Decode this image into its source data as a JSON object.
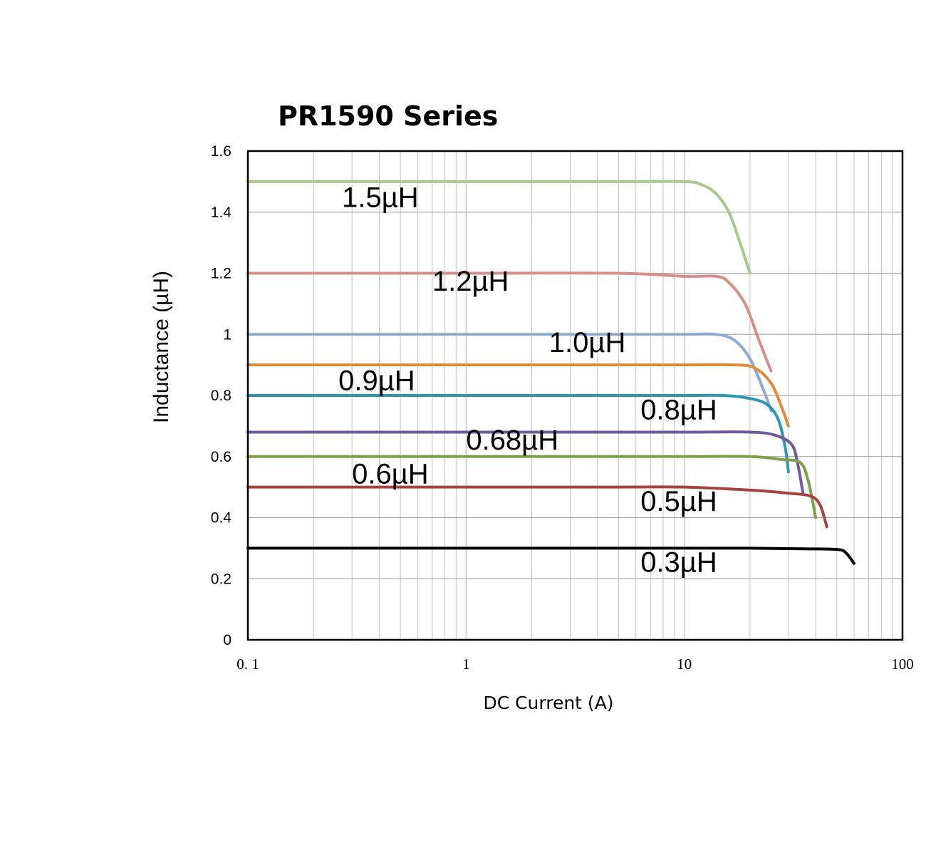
{
  "chart_data": {
    "type": "line",
    "title": "PR1590 Series",
    "xlabel": "DC Current (A)",
    "ylabel": "Inductance (µH)",
    "xscale": "log",
    "xlim": [
      0.1,
      100
    ],
    "ylim": [
      0,
      1.6
    ],
    "xticks": [
      "0.1",
      "1",
      "10",
      "100"
    ],
    "yticks": [
      "0",
      "0.2",
      "0.4",
      "0.6",
      "0.8",
      "1",
      "1.2",
      "1.4",
      "1.6"
    ],
    "grid": true,
    "series": [
      {
        "name": "1.5µH",
        "color": "#a9c88a",
        "points": [
          [
            0.1,
            1.5
          ],
          [
            1,
            1.5
          ],
          [
            5,
            1.5
          ],
          [
            10,
            1.5
          ],
          [
            12,
            1.49
          ],
          [
            14,
            1.46
          ],
          [
            16,
            1.4
          ],
          [
            18,
            1.3
          ],
          [
            20,
            1.2
          ]
        ]
      },
      {
        "name": "1.2µH",
        "color": "#d48f8d",
        "points": [
          [
            0.1,
            1.2
          ],
          [
            1,
            1.2
          ],
          [
            5,
            1.2
          ],
          [
            10,
            1.19
          ],
          [
            14,
            1.19
          ],
          [
            16,
            1.17
          ],
          [
            19,
            1.1
          ],
          [
            22,
            0.98
          ],
          [
            25,
            0.88
          ]
        ]
      },
      {
        "name": "1.0µH",
        "color": "#8fa9d6",
        "points": [
          [
            0.1,
            1.0
          ],
          [
            1,
            1.0
          ],
          [
            5,
            1.0
          ],
          [
            10,
            1.0
          ],
          [
            14,
            1.0
          ],
          [
            17,
            0.98
          ],
          [
            20,
            0.92
          ],
          [
            23,
            0.82
          ],
          [
            25,
            0.75
          ]
        ]
      },
      {
        "name": "0.9µH",
        "color": "#e08a3a",
        "points": [
          [
            0.1,
            0.9
          ],
          [
            1,
            0.9
          ],
          [
            5,
            0.9
          ],
          [
            10,
            0.9
          ],
          [
            17,
            0.9
          ],
          [
            21,
            0.89
          ],
          [
            25,
            0.84
          ],
          [
            28,
            0.76
          ],
          [
            30,
            0.7
          ]
        ]
      },
      {
        "name": "0.8µH",
        "color": "#2e97b0",
        "points": [
          [
            0.1,
            0.8
          ],
          [
            1,
            0.8
          ],
          [
            5,
            0.8
          ],
          [
            10,
            0.8
          ],
          [
            15,
            0.8
          ],
          [
            20,
            0.79
          ],
          [
            24,
            0.77
          ],
          [
            27,
            0.72
          ],
          [
            29,
            0.63
          ],
          [
            30,
            0.55
          ]
        ]
      },
      {
        "name": "0.68µH",
        "color": "#6f5b99",
        "points": [
          [
            0.1,
            0.68
          ],
          [
            1,
            0.68
          ],
          [
            5,
            0.68
          ],
          [
            10,
            0.68
          ],
          [
            20,
            0.68
          ],
          [
            26,
            0.67
          ],
          [
            31,
            0.64
          ],
          [
            33,
            0.58
          ],
          [
            35,
            0.48
          ]
        ]
      },
      {
        "name": "0.6µH",
        "color": "#7ea04a",
        "points": [
          [
            0.1,
            0.6
          ],
          [
            1,
            0.6
          ],
          [
            5,
            0.6
          ],
          [
            10,
            0.6
          ],
          [
            20,
            0.6
          ],
          [
            28,
            0.59
          ],
          [
            34,
            0.58
          ],
          [
            37,
            0.52
          ],
          [
            40,
            0.4
          ]
        ]
      },
      {
        "name": "0.5µH",
        "color": "#a54442",
        "points": [
          [
            0.1,
            0.5
          ],
          [
            1,
            0.5
          ],
          [
            5,
            0.5
          ],
          [
            10,
            0.5
          ],
          [
            20,
            0.49
          ],
          [
            30,
            0.48
          ],
          [
            38,
            0.47
          ],
          [
            42,
            0.44
          ],
          [
            45,
            0.37
          ]
        ]
      },
      {
        "name": "0.3µH",
        "color": "#000000",
        "points": [
          [
            0.1,
            0.3
          ],
          [
            1,
            0.3
          ],
          [
            5,
            0.3
          ],
          [
            10,
            0.3
          ],
          [
            20,
            0.3
          ],
          [
            35,
            0.298
          ],
          [
            50,
            0.296
          ],
          [
            55,
            0.285
          ],
          [
            60,
            0.25
          ]
        ]
      }
    ],
    "series_labels": [
      {
        "text": "1.5µH",
        "x": 0.27,
        "y": 1.45
      },
      {
        "text": "1.2µH",
        "x": 0.7,
        "y": 1.175
      },
      {
        "text": "1.0µH",
        "x": 2.4,
        "y": 0.975
      },
      {
        "text": "0.9µH",
        "x": 0.26,
        "y": 0.85
      },
      {
        "text": "0.8µH",
        "x": 6.3,
        "y": 0.755
      },
      {
        "text": "0.68µH",
        "x": 1.0,
        "y": 0.655
      },
      {
        "text": "0.6µH",
        "x": 0.3,
        "y": 0.545
      },
      {
        "text": "0.5µH",
        "x": 6.3,
        "y": 0.455
      },
      {
        "text": "0.3µH",
        "x": 6.3,
        "y": 0.255
      }
    ]
  }
}
